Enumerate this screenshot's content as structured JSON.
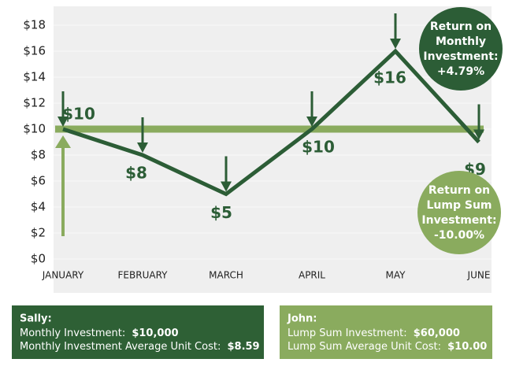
{
  "chart_data": {
    "type": "line",
    "categories": [
      "JANUARY",
      "FEBRUARY",
      "MARCH",
      "APRIL",
      "MAY",
      "JUNE"
    ],
    "series": [
      {
        "color": "#2c5d36",
        "values": [
          10,
          8,
          5,
          10,
          16,
          9
        ],
        "value_labels": [
          "$10",
          "$8",
          "$5",
          "$10",
          "$16",
          "$9"
        ]
      }
    ],
    "reference_value": 10,
    "reference_color": "#8aab5e",
    "ylim": [
      0,
      18
    ],
    "yticks": [
      {
        "value": 0,
        "label": "$0"
      },
      {
        "value": 2,
        "label": "$2"
      },
      {
        "value": 4,
        "label": "$4"
      },
      {
        "value": 6,
        "label": "$6"
      },
      {
        "value": 8,
        "label": "$8"
      },
      {
        "value": 10,
        "label": "$10"
      },
      {
        "value": 12,
        "label": "$12"
      },
      {
        "value": 14,
        "label": "$14"
      },
      {
        "value": 16,
        "label": "$16"
      },
      {
        "value": 18,
        "label": "$18"
      }
    ],
    "grid": true,
    "annotations": [
      {
        "lines": [
          "Return on",
          "Monthly",
          "Investment:",
          "+4.79%"
        ],
        "color": "#2c5d36"
      },
      {
        "lines": [
          "Return on",
          "Lump Sum",
          "Investment:",
          "-10.00%"
        ],
        "color": "#8aab5e"
      }
    ]
  },
  "boxes": [
    {
      "title": "Sally:",
      "color": "#2e6035",
      "rows": [
        {
          "label": "Monthly Investment: ",
          "value": "$10,000"
        },
        {
          "label": "Monthly Investment Average Unit Cost: ",
          "value": "$8.59"
        }
      ]
    },
    {
      "title": "John:",
      "color": "#8aab5e",
      "rows": [
        {
          "label": "Lump Sum Investment: ",
          "value": "$60,000"
        },
        {
          "label": "Lump Sum Average Unit Cost: ",
          "value": "$10.00"
        }
      ]
    }
  ]
}
